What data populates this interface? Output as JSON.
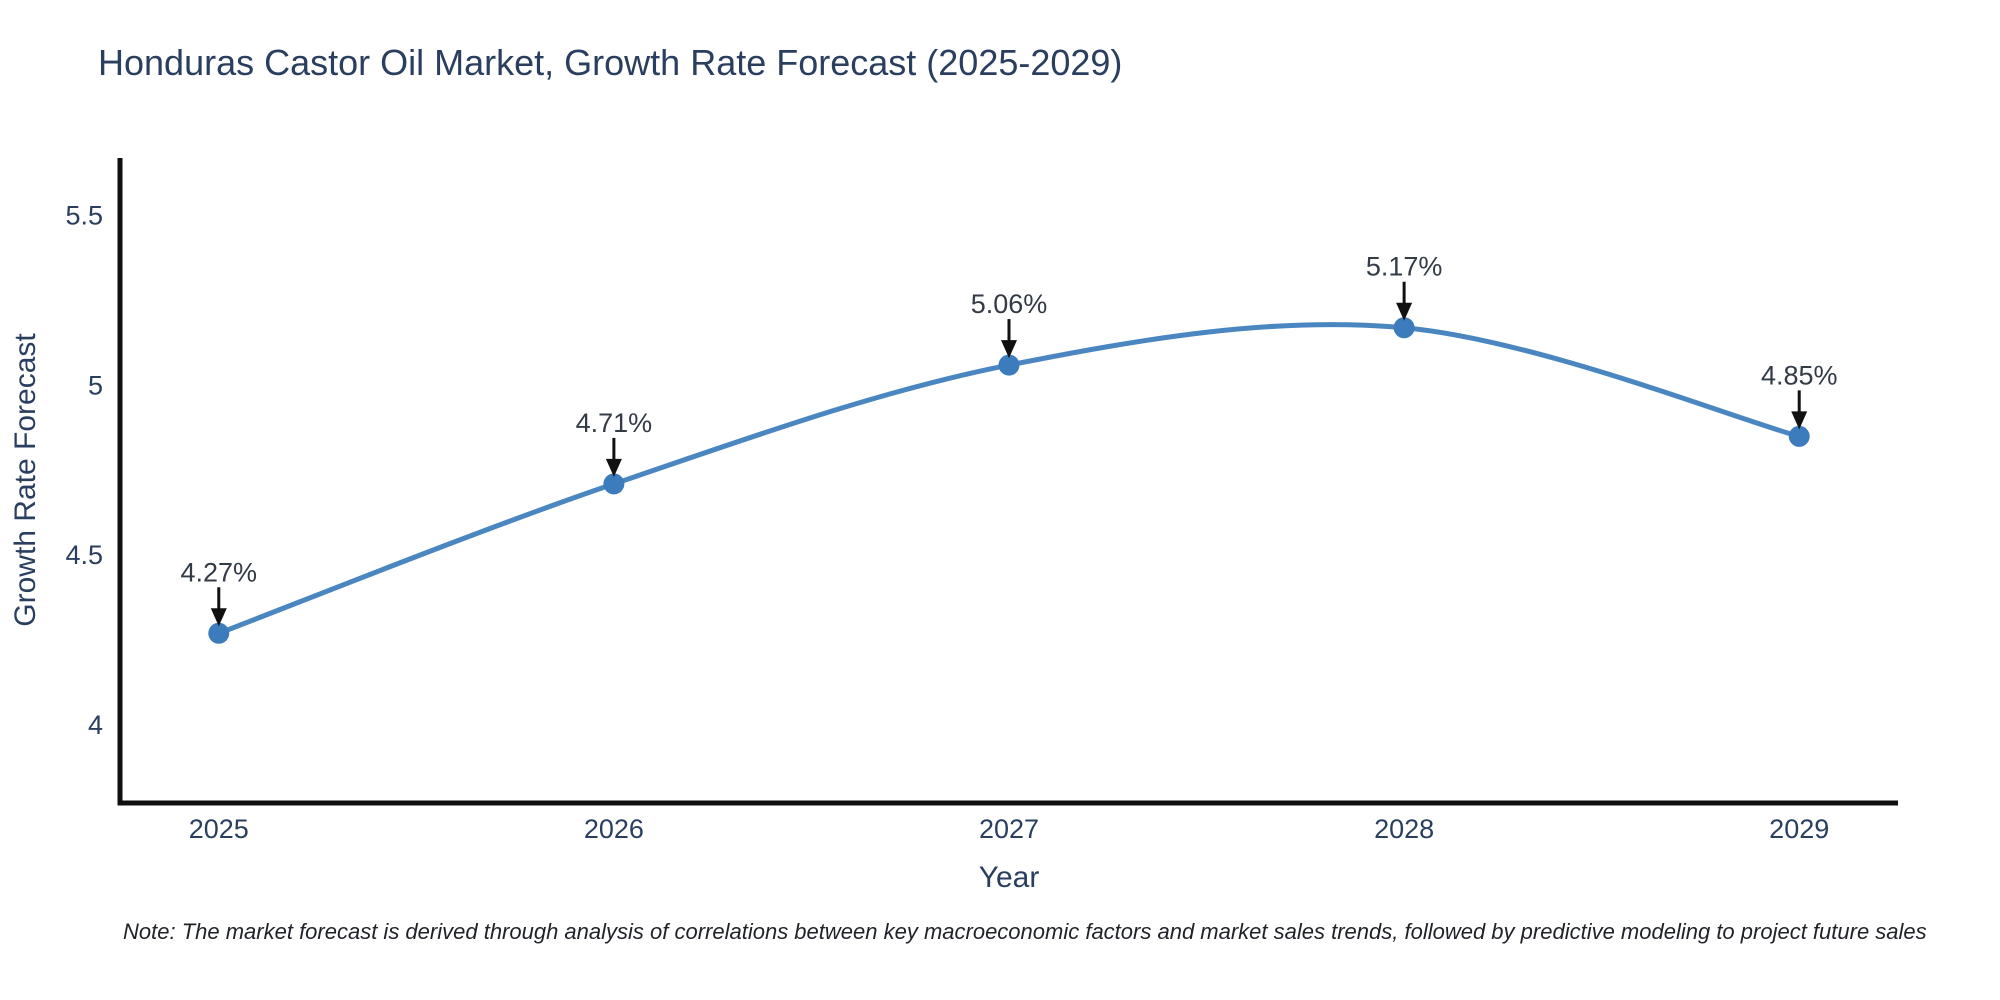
{
  "chart_data": {
    "type": "line",
    "title": "Honduras Castor Oil Market, Growth Rate Forecast (2025-2029)",
    "xlabel": "Year",
    "ylabel": "Growth Rate Forecast",
    "x": [
      2025,
      2026,
      2027,
      2028,
      2029
    ],
    "values": [
      4.27,
      4.71,
      5.06,
      5.17,
      4.85
    ],
    "point_labels": [
      "4.27%",
      "4.71%",
      "5.06%",
      "5.17%",
      "4.85%"
    ],
    "yticks": [
      4,
      4.5,
      5,
      5.5
    ],
    "ytick_labels": [
      "4",
      "4.5",
      "5",
      "5.5"
    ],
    "ylim": [
      3.77,
      5.67
    ],
    "xlim": [
      2024.75,
      2029.25
    ],
    "grid": false,
    "legend": "none",
    "line_shape": "spline",
    "annotations_style": "value label above point with downward black arrow",
    "colors": {
      "line": "#4a87c1",
      "marker": "#3c7cbc",
      "arrow": "#111111",
      "annotation_text": "#333b46",
      "axis_line": "#0f0f0f",
      "tick_text": "#2a3f5f",
      "title_text": "#2a3f5f"
    }
  },
  "note": {
    "text": "Note: The market forecast is derived through analysis of correlations between key macroeconomic factors and market sales trends, followed by predictive modeling to project future sales"
  }
}
